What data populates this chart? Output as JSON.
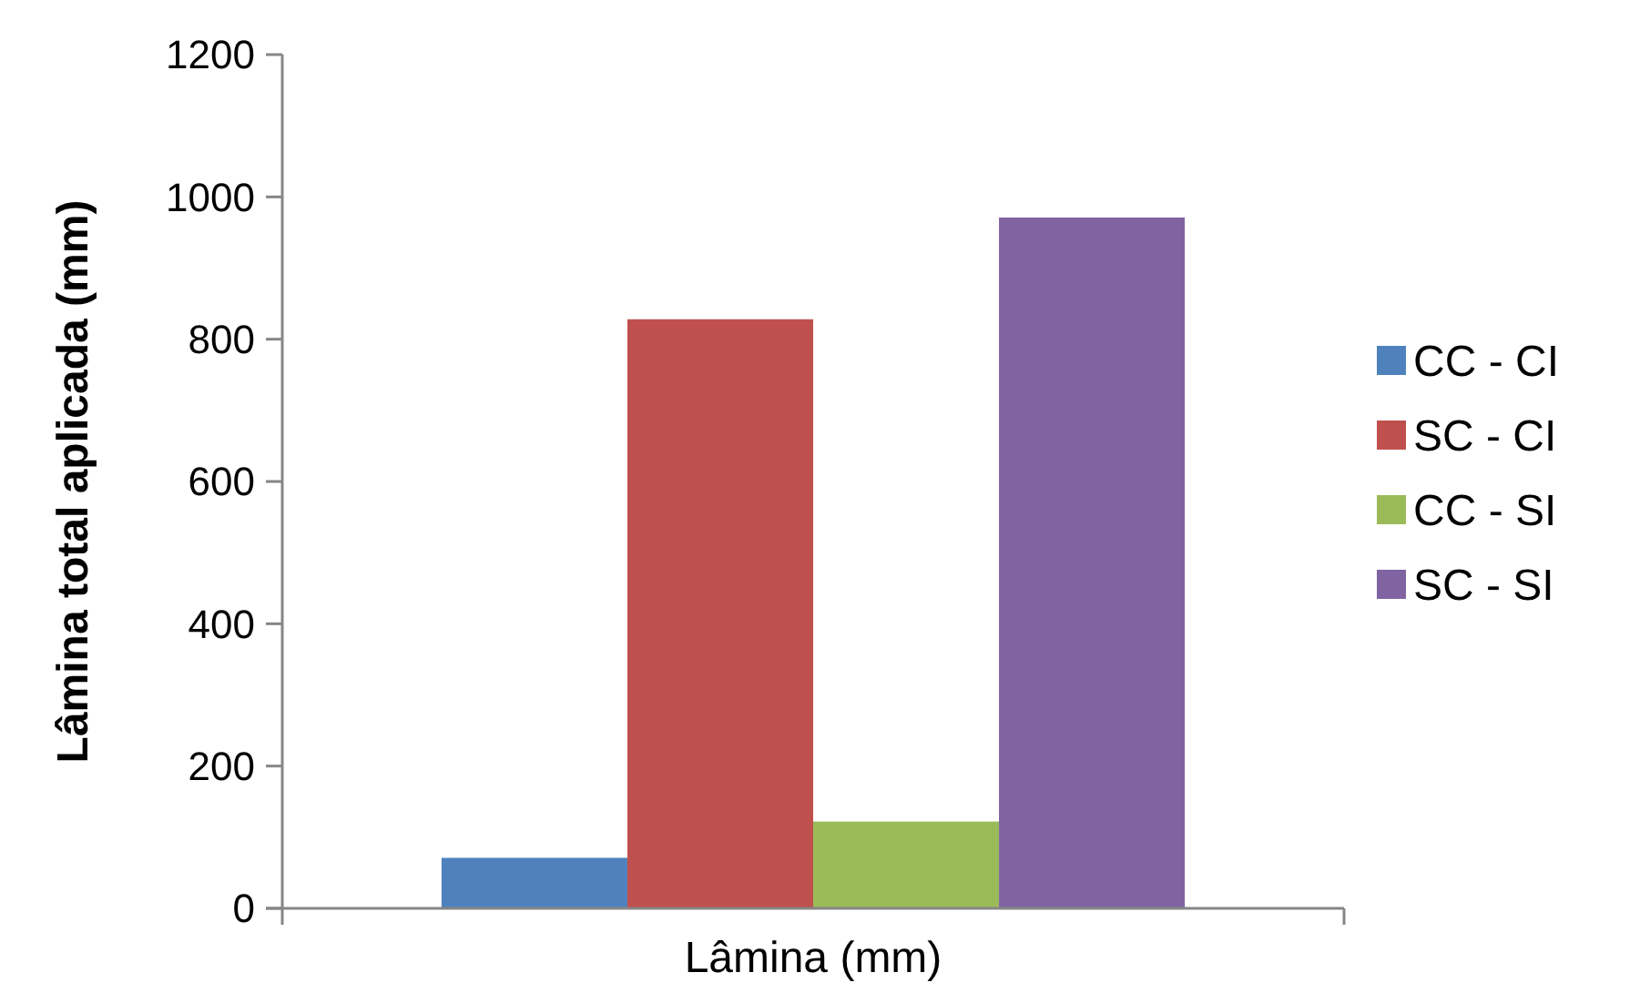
{
  "chart_data": {
    "type": "bar",
    "xlabel": "Lâmina (mm)",
    "ylabel": "Lâmina total aplicada (mm)",
    "categories": [
      null
    ],
    "series": [
      {
        "name": "CC - CI",
        "color": "#4f81bd",
        "values": [
          71
        ]
      },
      {
        "name": "SC - CI",
        "color": "#c0504d",
        "values": [
          828
        ]
      },
      {
        "name": "CC - SI",
        "color": "#9bbb59",
        "values": [
          122
        ]
      },
      {
        "name": "SC - SI",
        "color": "#8064a2",
        "values": [
          971
        ]
      }
    ],
    "ylim": [
      0,
      1200
    ],
    "yticks": [
      0,
      200,
      400,
      600,
      800,
      1000,
      1200
    ],
    "legend": "right"
  }
}
